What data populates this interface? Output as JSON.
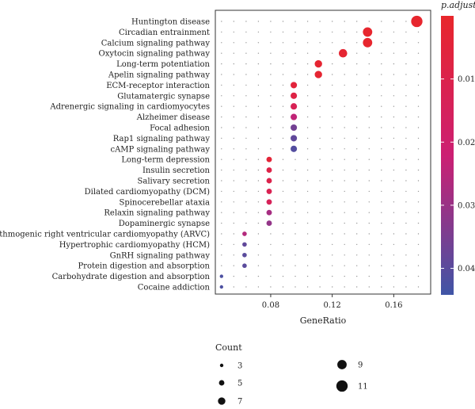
{
  "chart_data": {
    "type": "scatter",
    "xlabel": "GeneRatio",
    "xlim": [
      0.044,
      0.184
    ],
    "xticks": [
      0.08,
      0.12,
      0.16
    ],
    "xtick_labels": [
      "0.08",
      "0.12",
      "0.16"
    ],
    "grid": true,
    "categories": [
      "Huntington disease",
      "Circadian entrainment",
      "Calcium signaling pathway",
      "Oxytocin signaling pathway",
      "Long-term potentiation",
      "Apelin signaling pathway",
      "ECM-receptor interaction",
      "Glutamatergic synapse",
      "Adrenergic signaling in cardiomyocytes",
      "Alzheimer disease",
      "Focal adhesion",
      "Rap1 signaling pathway",
      "cAMP signaling pathway",
      "Long-term depression",
      "Insulin secretion",
      "Salivary secretion",
      "Dilated cardiomyopathy (DCM)",
      "Spinocerebellar ataxia",
      "Relaxin signaling pathway",
      "Dopaminergic synapse",
      "Arrhythmogenic right ventricular cardiomyopathy (ARVC)",
      "Hypertrophic cardiomyopathy (HCM)",
      "GnRH signaling pathway",
      "Protein digestion and absorption",
      "Carbohydrate digestion and absorption",
      "Cocaine addiction"
    ],
    "points": [
      {
        "term": "Huntington disease",
        "gene_ratio": 0.175,
        "count": 11,
        "p_adjust": 0.001
      },
      {
        "term": "Circadian entrainment",
        "gene_ratio": 0.143,
        "count": 9,
        "p_adjust": 0.001
      },
      {
        "term": "Calcium signaling pathway",
        "gene_ratio": 0.143,
        "count": 9,
        "p_adjust": 0.001
      },
      {
        "term": "Oxytocin signaling pathway",
        "gene_ratio": 0.127,
        "count": 8,
        "p_adjust": 0.002
      },
      {
        "term": "Long-term potentiation",
        "gene_ratio": 0.111,
        "count": 7,
        "p_adjust": 0.002
      },
      {
        "term": "Apelin signaling pathway",
        "gene_ratio": 0.111,
        "count": 7,
        "p_adjust": 0.002
      },
      {
        "term": "ECM-receptor interaction",
        "gene_ratio": 0.095,
        "count": 6,
        "p_adjust": 0.005
      },
      {
        "term": "Glutamatergic synapse",
        "gene_ratio": 0.095,
        "count": 6,
        "p_adjust": 0.008
      },
      {
        "term": "Adrenergic signaling in cardiomyocytes",
        "gene_ratio": 0.095,
        "count": 6,
        "p_adjust": 0.013
      },
      {
        "term": "Alzheimer disease",
        "gene_ratio": 0.095,
        "count": 6,
        "p_adjust": 0.024
      },
      {
        "term": "Focal adhesion",
        "gene_ratio": 0.095,
        "count": 6,
        "p_adjust": 0.036
      },
      {
        "term": "Rap1 signaling pathway",
        "gene_ratio": 0.095,
        "count": 6,
        "p_adjust": 0.039
      },
      {
        "term": "cAMP signaling pathway",
        "gene_ratio": 0.095,
        "count": 6,
        "p_adjust": 0.041
      },
      {
        "term": "Long-term depression",
        "gene_ratio": 0.079,
        "count": 5,
        "p_adjust": 0.004
      },
      {
        "term": "Insulin secretion",
        "gene_ratio": 0.079,
        "count": 5,
        "p_adjust": 0.009
      },
      {
        "term": "Salivary secretion",
        "gene_ratio": 0.079,
        "count": 5,
        "p_adjust": 0.01
      },
      {
        "term": "Dilated cardiomyopathy (DCM)",
        "gene_ratio": 0.079,
        "count": 5,
        "p_adjust": 0.012
      },
      {
        "term": "Spinocerebellar ataxia",
        "gene_ratio": 0.079,
        "count": 5,
        "p_adjust": 0.014
      },
      {
        "term": "Relaxin signaling pathway",
        "gene_ratio": 0.079,
        "count": 5,
        "p_adjust": 0.028
      },
      {
        "term": "Dopaminergic synapse",
        "gene_ratio": 0.079,
        "count": 5,
        "p_adjust": 0.031
      },
      {
        "term": "Arrhythmogenic right ventricular cardiomyopathy (ARVC)",
        "gene_ratio": 0.063,
        "count": 4,
        "p_adjust": 0.026
      },
      {
        "term": "Hypertrophic cardiomyopathy (HCM)",
        "gene_ratio": 0.063,
        "count": 4,
        "p_adjust": 0.039
      },
      {
        "term": "GnRH signaling pathway",
        "gene_ratio": 0.063,
        "count": 4,
        "p_adjust": 0.04
      },
      {
        "term": "Protein digestion and absorption",
        "gene_ratio": 0.063,
        "count": 4,
        "p_adjust": 0.04
      },
      {
        "term": "Carbohydrate digestion and absorption",
        "gene_ratio": 0.048,
        "count": 3,
        "p_adjust": 0.042
      },
      {
        "term": "Cocaine addiction",
        "gene_ratio": 0.048,
        "count": 3,
        "p_adjust": 0.042
      }
    ],
    "color_legend": {
      "title": "p.adjust",
      "range": [
        0.0,
        0.0442
      ],
      "ticks": [
        0.01,
        0.02,
        0.03,
        0.04
      ],
      "tick_labels": [
        "0.01",
        "0.02",
        "0.03",
        "0.04"
      ],
      "color_low": "#e8262b",
      "color_mid": "#cc1f73",
      "color_high": "#3f55a6",
      "placement": "right"
    },
    "size_legend": {
      "title": "Count",
      "values": [
        3,
        5,
        7,
        9,
        11
      ],
      "labels": [
        "3",
        "5",
        "7",
        "9",
        "11"
      ],
      "placement": "bottom"
    }
  }
}
